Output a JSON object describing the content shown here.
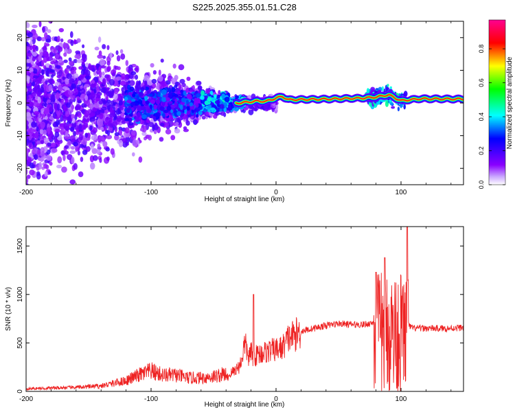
{
  "figure": {
    "title": "S225.2025.355.01.51.C28"
  },
  "chart_data": [
    {
      "type": "heatmap",
      "xlabel": "Height of straight line (km)",
      "ylabel": "Frequency (Hz)",
      "xlim": [
        -200,
        150
      ],
      "ylim": [
        -25,
        25
      ],
      "xticks": [
        -200,
        -100,
        0,
        100
      ],
      "yticks": [
        -20,
        -10,
        0,
        10,
        20
      ],
      "colorbar": {
        "label": "Normalized spectral amplitude",
        "range": [
          0,
          0.97
        ],
        "ticks": [
          0.0,
          0.2,
          0.4,
          0.6,
          0.8
        ],
        "colors": [
          "#ffffff",
          "#8a00ff",
          "#0000ff",
          "#00ffff",
          "#00ff00",
          "#ffff00",
          "#ff0000",
          "#ff0090"
        ]
      },
      "ridge": {
        "description_points": [
          {
            "x": -30,
            "y": 0.0
          },
          {
            "x": -22,
            "y": 0.3
          },
          {
            "x": -15,
            "y": 0.6
          },
          {
            "x": -8,
            "y": 0.5
          },
          {
            "x": 0,
            "y": 1.5
          },
          {
            "x": 5,
            "y": 2.0
          },
          {
            "x": 10,
            "y": 1.0
          },
          {
            "x": 40,
            "y": 1.2
          },
          {
            "x": 70,
            "y": 1.5
          },
          {
            "x": 80,
            "y": 1.8
          },
          {
            "x": 90,
            "y": 2.5
          },
          {
            "x": 100,
            "y": 0.7
          },
          {
            "x": 115,
            "y": 1.3
          },
          {
            "x": 150,
            "y": 1.2
          }
        ]
      }
    },
    {
      "type": "line",
      "xlabel": "Height of straight line (km)",
      "ylabel": "SNR (10 * v/v)",
      "xlim": [
        -200,
        150
      ],
      "ylim": [
        0,
        1700
      ],
      "xticks": [
        -200,
        -100,
        0,
        100
      ],
      "yticks": [
        0,
        500,
        1000,
        1500
      ],
      "color": "#ee2222",
      "series": [
        {
          "name": "SNR",
          "x": [
            -200,
            -180,
            -160,
            -140,
            -130,
            -120,
            -110,
            -100,
            -90,
            -80,
            -70,
            -60,
            -50,
            -40,
            -35,
            -30,
            -28,
            -25,
            -22,
            -20,
            -18,
            -15,
            -10,
            -5,
            0,
            5,
            10,
            15,
            20,
            30,
            40,
            50,
            60,
            70,
            75,
            80,
            85,
            90,
            95,
            100,
            103,
            105,
            108,
            110,
            120,
            130,
            140,
            150
          ],
          "values": [
            20,
            25,
            30,
            40,
            60,
            80,
            120,
            150,
            120,
            120,
            100,
            100,
            110,
            130,
            200,
            250,
            300,
            500,
            350,
            400,
            350,
            380,
            400,
            420,
            430,
            450,
            550,
            580,
            620,
            650,
            680,
            700,
            690,
            690,
            700,
            720,
            700,
            680,
            690,
            700,
            720,
            700,
            660,
            650,
            650,
            650,
            650,
            660
          ]
        }
      ],
      "spikes": [
        {
          "x": -18,
          "y": 1000
        },
        {
          "x": 80,
          "y": 1230
        },
        {
          "x": 87,
          "y": 1380
        },
        {
          "x": 105,
          "y": 1700
        }
      ]
    }
  ]
}
